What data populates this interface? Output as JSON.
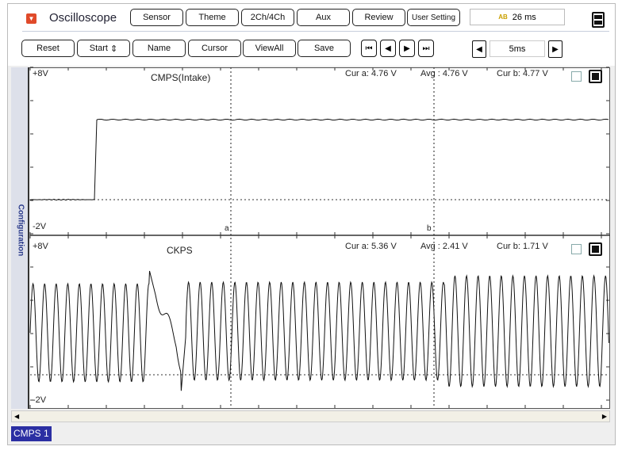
{
  "header": {
    "title": "Oscilloscope",
    "time_display": "26 ms",
    "time_icon": "ab-icon"
  },
  "toolbar1": [
    "Sensor",
    "Theme",
    "2Ch/4Ch",
    "Aux",
    "Review",
    "User Setting"
  ],
  "toolbar2": [
    "Reset",
    "Start",
    "Name",
    "Cursor",
    "ViewAll",
    "Save"
  ],
  "start_spinner": "⇕",
  "nav": [
    "⏮",
    "◀",
    "▶",
    "⏭"
  ],
  "timebase": {
    "value": "5ms",
    "prev": "◀",
    "next": "▶"
  },
  "side": {
    "label": "Configuration"
  },
  "channels": [
    {
      "name": "CMPS(Intake)",
      "ymax": "+8V",
      "ymin": "-2V",
      "cur_a": "Cur a: 4.76 V",
      "avg": "Avg  : 4.76 V",
      "cur_b": "Cur b: 4.77 V"
    },
    {
      "name": "CKPS",
      "ymax": "+8V",
      "ymin": "-2V",
      "cur_a": "Cur a: 5.36 V",
      "avg": "Avg  : 2.41 V",
      "cur_b": "Cur b: 1.71 V"
    }
  ],
  "cursors": {
    "a": "a",
    "b": "b"
  },
  "status": "CMPS 1",
  "colors": {
    "status_bg": "#2b2fa3",
    "logo": "#e04a2a"
  }
}
